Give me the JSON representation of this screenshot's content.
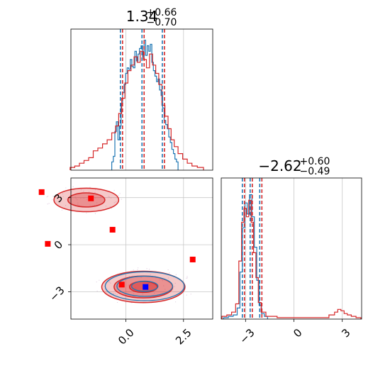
{
  "chart_data": {
    "type": "corner",
    "colors": {
      "blue": "#1f77b4",
      "red": "#d62728",
      "marker_red": "#ff0000",
      "marker_blue": "#0000ff"
    },
    "grid": true,
    "panels": [
      {
        "id": "hist_param1",
        "type": "histogram",
        "title": {
          "main": "1.34",
          "sup": "+0.66",
          "sub": "−0.70"
        },
        "xlim": [
          -1.0,
          3.6
        ],
        "series": [
          {
            "name": "blue",
            "bins": [
              [
                0.35,
                0.06
              ],
              [
                0.4,
                0.1
              ],
              [
                0.45,
                0.28
              ],
              [
                0.5,
                0.35
              ],
              [
                0.55,
                0.22
              ],
              [
                0.6,
                0.32
              ],
              [
                0.65,
                0.48
              ],
              [
                0.7,
                0.56
              ],
              [
                0.75,
                0.62
              ],
              [
                0.8,
                0.7
              ],
              [
                0.85,
                0.74
              ],
              [
                0.9,
                0.73
              ],
              [
                0.95,
                0.8
              ],
              [
                1.0,
                0.75
              ],
              [
                1.05,
                0.74
              ],
              [
                1.1,
                0.86
              ],
              [
                1.15,
                0.79
              ],
              [
                1.2,
                0.84
              ],
              [
                1.25,
                0.88
              ],
              [
                1.3,
                0.9
              ],
              [
                1.35,
                0.82
              ],
              [
                1.4,
                0.94
              ],
              [
                1.45,
                0.83
              ],
              [
                1.5,
                0.9
              ],
              [
                1.55,
                0.86
              ],
              [
                1.6,
                0.91
              ],
              [
                1.65,
                0.78
              ],
              [
                1.7,
                0.72
              ],
              [
                1.75,
                0.68
              ],
              [
                1.8,
                0.64
              ],
              [
                1.85,
                0.66
              ],
              [
                1.9,
                0.58
              ],
              [
                1.95,
                0.54
              ],
              [
                2.0,
                0.45
              ],
              [
                2.05,
                0.36
              ],
              [
                2.1,
                0.33
              ],
              [
                2.15,
                0.3
              ],
              [
                2.2,
                0.24
              ],
              [
                2.25,
                0.2
              ],
              [
                2.3,
                0.15
              ],
              [
                2.35,
                0.12
              ],
              [
                2.4,
                0.08
              ],
              [
                2.45,
                0.06
              ]
            ]
          },
          {
            "name": "red",
            "bins": [
              [
                -0.95,
                0.02
              ],
              [
                -0.8,
                0.03
              ],
              [
                -0.65,
                0.05
              ],
              [
                -0.5,
                0.07
              ],
              [
                -0.35,
                0.09
              ],
              [
                -0.2,
                0.14
              ],
              [
                -0.05,
                0.16
              ],
              [
                0.1,
                0.19
              ],
              [
                0.25,
                0.22
              ],
              [
                0.4,
                0.27
              ],
              [
                0.5,
                0.32
              ],
              [
                0.6,
                0.41
              ],
              [
                0.7,
                0.52
              ],
              [
                0.8,
                0.63
              ],
              [
                0.9,
                0.72
              ],
              [
                1.0,
                0.76
              ],
              [
                1.1,
                0.82
              ],
              [
                1.2,
                0.78
              ],
              [
                1.3,
                0.86
              ],
              [
                1.4,
                0.8
              ],
              [
                1.5,
                0.74
              ],
              [
                1.6,
                0.84
              ],
              [
                1.7,
                0.76
              ],
              [
                1.8,
                0.7
              ],
              [
                1.9,
                0.62
              ],
              [
                2.0,
                0.47
              ],
              [
                2.1,
                0.39
              ],
              [
                2.2,
                0.3
              ],
              [
                2.3,
                0.22
              ],
              [
                2.4,
                0.17
              ],
              [
                2.55,
                0.12
              ],
              [
                2.7,
                0.08
              ],
              [
                2.85,
                0.05
              ],
              [
                3.0,
                0.03
              ],
              [
                3.2,
                0.02
              ]
            ]
          }
        ],
        "quantiles": [
          0.64,
          1.34,
          2.0
        ]
      },
      {
        "id": "hist_param2",
        "type": "histogram",
        "title": {
          "main": "−2.62",
          "sup": "+0.60",
          "sub": "−0.49"
        },
        "xlim": [
          -4.5,
          4.3
        ],
        "series": [
          {
            "name": "blue",
            "bins": [
              [
                -4.2,
                0.01
              ],
              [
                -3.9,
                0.02
              ],
              [
                -3.6,
                0.03
              ],
              [
                -3.4,
                0.08
              ],
              [
                -3.25,
                0.34
              ],
              [
                -3.1,
                0.66
              ],
              [
                -2.95,
                0.84
              ],
              [
                -2.8,
                0.76
              ],
              [
                -2.65,
                0.9
              ],
              [
                -2.5,
                0.74
              ],
              [
                -2.35,
                0.52
              ],
              [
                -2.2,
                0.28
              ],
              [
                -2.05,
                0.1
              ],
              [
                -1.9,
                0.04
              ],
              [
                -1.7,
                0.02
              ]
            ]
          },
          {
            "name": "red",
            "bins": [
              [
                -4.3,
                0.02
              ],
              [
                -4.0,
                0.03
              ],
              [
                -3.7,
                0.05
              ],
              [
                -3.5,
                0.11
              ],
              [
                -3.3,
                0.42
              ],
              [
                -3.15,
                0.7
              ],
              [
                -3.0,
                0.8
              ],
              [
                -2.85,
                0.74
              ],
              [
                -2.7,
                0.86
              ],
              [
                -2.55,
                0.7
              ],
              [
                -2.4,
                0.48
              ],
              [
                -2.25,
                0.3
              ],
              [
                -2.1,
                0.12
              ],
              [
                -1.9,
                0.05
              ],
              [
                -1.5,
                0.02
              ],
              [
                -0.5,
                0.01
              ],
              [
                1.0,
                0.01
              ],
              [
                2.0,
                0.01
              ],
              [
                2.5,
                0.03
              ],
              [
                2.7,
                0.05
              ],
              [
                2.9,
                0.07
              ],
              [
                3.1,
                0.06
              ],
              [
                3.3,
                0.04
              ],
              [
                3.5,
                0.03
              ],
              [
                3.8,
                0.02
              ],
              [
                4.1,
                0.01
              ]
            ]
          }
        ],
        "quantiles": [
          -3.11,
          -2.62,
          -2.02
        ]
      },
      {
        "id": "scatter_2d",
        "type": "2d_contour",
        "xlim": [
          -1.0,
          3.6
        ],
        "ylim": [
          -4.6,
          4.4
        ],
        "x_ticks": [
          0.0,
          2.5
        ],
        "x_tick_labels": [
          "0.0",
          "2.5"
        ],
        "y_ticks": [
          -3,
          0,
          3
        ],
        "y_tick_labels": [
          "−3",
          "0",
          "3"
        ],
        "red_markers": [
          [
            -1.95,
            3.5
          ],
          [
            -0.35,
            3.1
          ],
          [
            -1.75,
            0.2
          ],
          [
            0.35,
            1.1
          ],
          [
            0.65,
            -2.4
          ],
          [
            2.95,
            -0.8
          ]
        ],
        "blue_marker": [
          1.42,
          -2.55
        ],
        "clusters": [
          {
            "center": [
              1.35,
              -2.55
            ],
            "rx": [
              1.35,
              0.95,
              0.45
            ],
            "ry": [
              1.0,
              0.7,
              0.35
            ]
          },
          {
            "center": [
              -0.5,
              3.0
            ],
            "rx": [
              1.05,
              0.6
            ],
            "ry": [
              0.75,
              0.45
            ]
          }
        ]
      },
      {
        "id": "hist_param2_axis",
        "x_ticks": [
          -3,
          0,
          3
        ],
        "x_tick_labels": [
          "−3",
          "0",
          "3"
        ]
      }
    ]
  }
}
